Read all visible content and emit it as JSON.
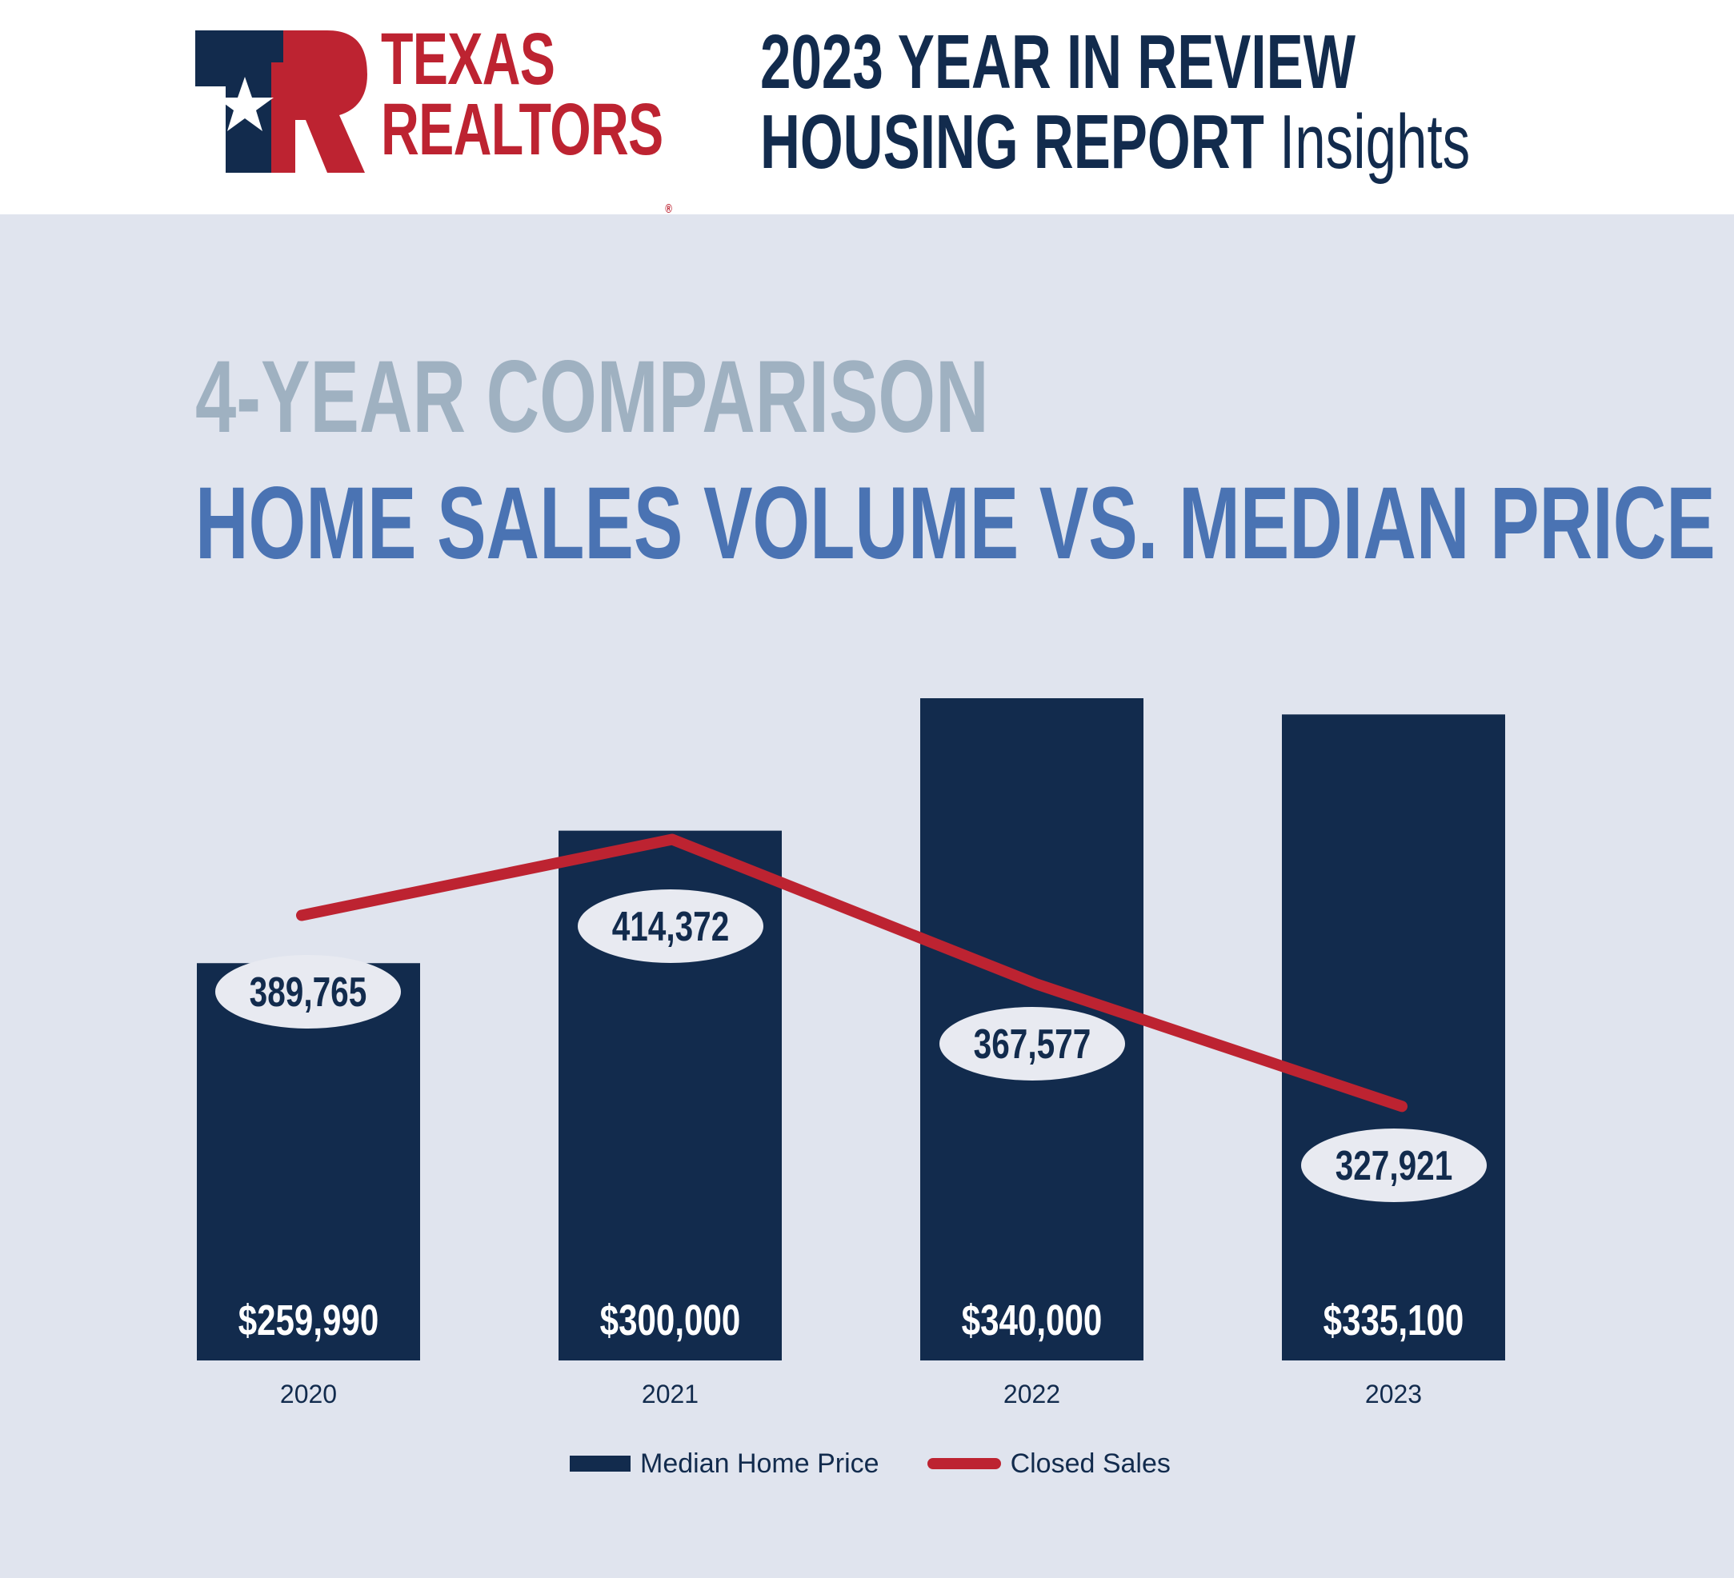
{
  "header": {
    "logo": {
      "line1": "TEXAS",
      "line2": "REALTORS",
      "mark": "®"
    },
    "title_line1": "2023 YEAR IN REVIEW",
    "title_line2_bold": "HOUSING REPORT",
    "title_line2_light": "Insights"
  },
  "colors": {
    "navy": "#122b4d",
    "red": "#bd2331",
    "background": "#e0e4ee",
    "subtitle_gray": "#9fb1c1",
    "title_blue": "#4a73b3"
  },
  "chart_data": {
    "type": "bar",
    "supertitle": "4-YEAR COMPARISON",
    "title": "HOME SALES VOLUME VS. MEDIAN PRICE",
    "categories": [
      "2020",
      "2021",
      "2022",
      "2023"
    ],
    "series": [
      {
        "name": "Median Home Price",
        "type": "bar",
        "values": [
          259990,
          300000,
          340000,
          335100
        ],
        "labels": [
          "$259,990",
          "$300,000",
          "$340,000",
          "$335,100"
        ]
      },
      {
        "name": "Closed Sales",
        "type": "line",
        "values": [
          389765,
          414372,
          367577,
          327921
        ],
        "labels": [
          "389,765",
          "414,372",
          "367,577",
          "327,921"
        ]
      }
    ],
    "legend": "bottom-center",
    "grid": false,
    "axes_visible": false
  }
}
